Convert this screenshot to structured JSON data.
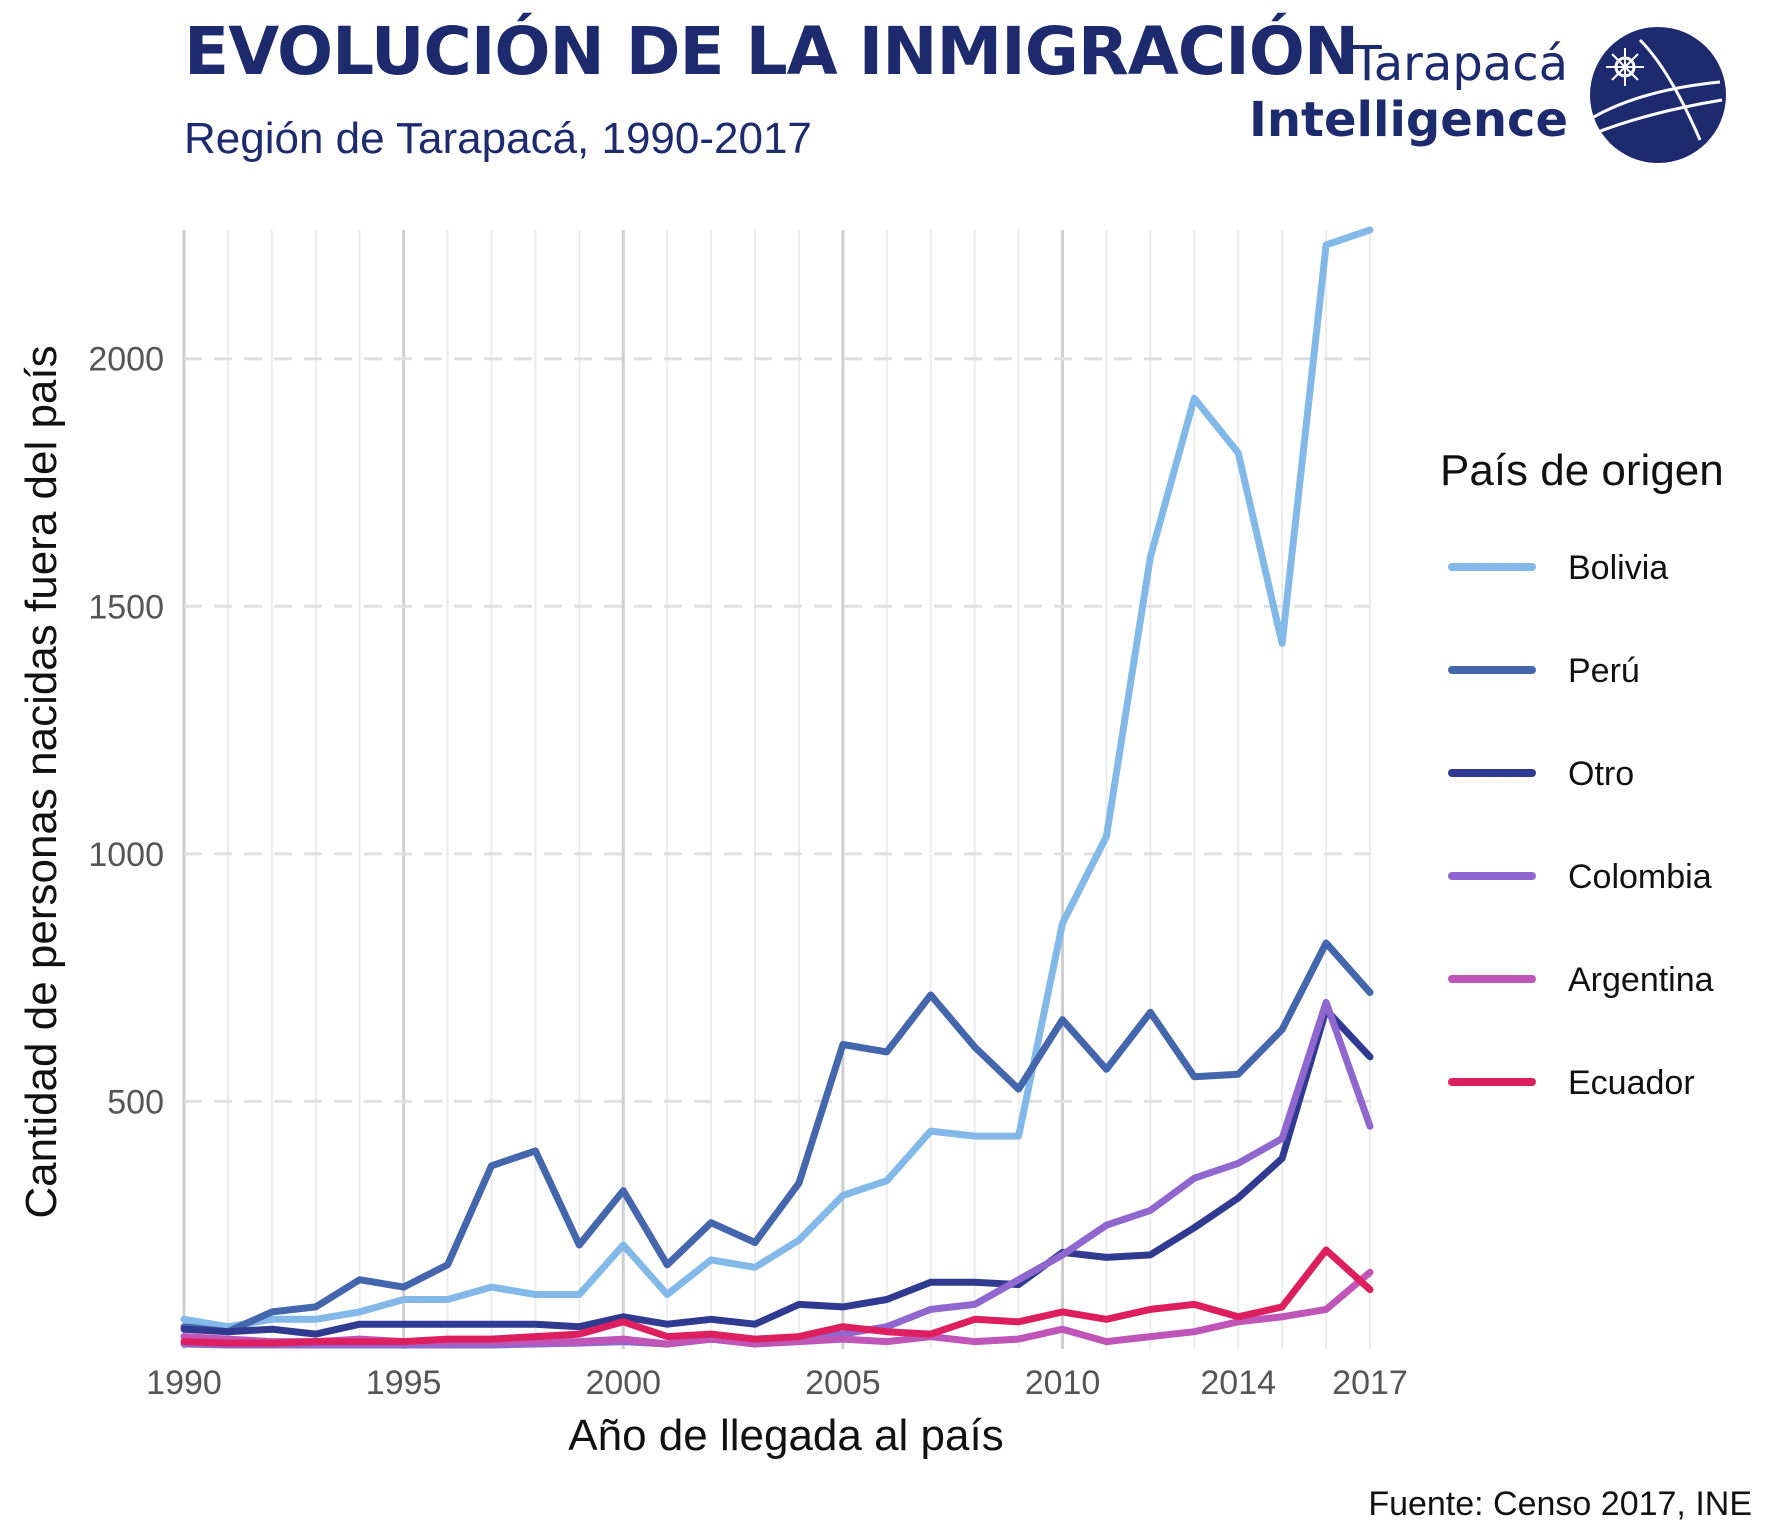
{
  "header": {
    "title": "EVOLUCIÓN DE LA INMIGRACIÓN",
    "subtitle": "Región de Tarapacá, 1990-2017"
  },
  "logo": {
    "line1": "Tarapacá",
    "line2": "Intelligence",
    "icon": "tarapaca-intelligence-globe-icon"
  },
  "source": "Fuente: Censo 2017, INE",
  "chart_data": {
    "type": "line",
    "xlabel": "Año de llegada al país",
    "ylabel": "Cantidad de personas nacidas fuera del país",
    "xlim": [
      1990,
      2017
    ],
    "ylim": [
      0,
      2260
    ],
    "x_ticks": [
      1990,
      1995,
      2000,
      2005,
      2010,
      2014,
      2017
    ],
    "y_ticks": [
      500,
      1000,
      1500,
      2000
    ],
    "grid": true,
    "legend": {
      "title": "País de origen",
      "position": "right"
    },
    "x": [
      1990,
      1991,
      1992,
      1993,
      1994,
      1995,
      1996,
      1997,
      1998,
      1999,
      2000,
      2001,
      2002,
      2003,
      2004,
      2005,
      2006,
      2007,
      2008,
      2009,
      2010,
      2011,
      2012,
      2013,
      2014,
      2015,
      2016,
      2017
    ],
    "series": [
      {
        "name": "Bolivia",
        "color": "#83b9e8",
        "values": [
          60,
          45,
          60,
          60,
          75,
          100,
          100,
          125,
          110,
          110,
          210,
          110,
          180,
          165,
          220,
          310,
          340,
          440,
          430,
          430,
          860,
          1035,
          1600,
          1920,
          1810,
          1425,
          2230,
          2260
        ]
      },
      {
        "name": "Perú",
        "color": "#4466ad",
        "values": [
          45,
          35,
          75,
          85,
          140,
          125,
          170,
          370,
          400,
          210,
          320,
          170,
          255,
          215,
          335,
          615,
          600,
          715,
          610,
          525,
          665,
          565,
          680,
          550,
          555,
          645,
          820,
          720
        ]
      },
      {
        "name": "Otro",
        "color": "#303a91",
        "values": [
          40,
          35,
          40,
          30,
          50,
          50,
          50,
          50,
          50,
          45,
          65,
          50,
          60,
          50,
          90,
          85,
          100,
          135,
          135,
          130,
          195,
          185,
          190,
          245,
          305,
          385,
          685,
          590
        ]
      },
      {
        "name": "Colombia",
        "color": "#9067cf",
        "values": [
          10,
          8,
          8,
          8,
          8,
          8,
          8,
          8,
          10,
          12,
          15,
          10,
          20,
          15,
          20,
          30,
          45,
          80,
          90,
          140,
          190,
          250,
          280,
          345,
          375,
          425,
          700,
          450
        ]
      },
      {
        "name": "Argentina",
        "color": "#c055b8",
        "values": [
          25,
          20,
          15,
          15,
          20,
          15,
          15,
          15,
          15,
          15,
          20,
          10,
          20,
          10,
          15,
          20,
          15,
          25,
          15,
          20,
          40,
          15,
          25,
          35,
          55,
          65,
          80,
          155
        ]
      },
      {
        "name": "Ecuador",
        "color": "#dd1f5f",
        "values": [
          15,
          12,
          12,
          15,
          15,
          15,
          20,
          20,
          25,
          30,
          55,
          25,
          30,
          20,
          25,
          45,
          35,
          30,
          60,
          55,
          75,
          60,
          80,
          90,
          65,
          85,
          200,
          120
        ]
      }
    ]
  }
}
